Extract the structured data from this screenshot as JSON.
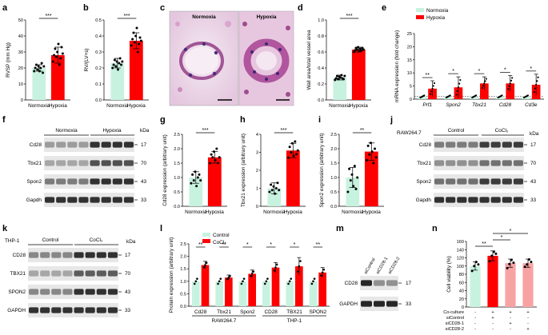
{
  "colors": {
    "control": "#c8f2e0",
    "treat": "#ff0000",
    "treat_light": "#f8a3a3",
    "control_dot_fill": "#c8f2e0"
  },
  "panels": {
    "a": {
      "label": "a",
      "ylabel": "RVSP (mm Hg)",
      "yticks": [
        "0",
        "10",
        "20",
        "30",
        "40",
        "50"
      ],
      "ymax": 50,
      "groups": [
        "Normoxia",
        "Hypoxia"
      ],
      "means": [
        20,
        28
      ],
      "errors": [
        2,
        5
      ],
      "points": [
        [
          18,
          20,
          22,
          19,
          21,
          18,
          20,
          23,
          17,
          21
        ],
        [
          24,
          28,
          32,
          27,
          30,
          35,
          22,
          26,
          33,
          29
        ]
      ],
      "sig": "***"
    },
    "b": {
      "label": "b",
      "ylabel": "RV/(LV+s)",
      "yticks": [
        "0.0",
        "0.1",
        "0.2",
        "0.3",
        "0.4",
        "0.5"
      ],
      "ymax": 0.5,
      "groups": [
        "Normoxia",
        "Hypoxia"
      ],
      "means": [
        0.23,
        0.37
      ],
      "errors": [
        0.03,
        0.05
      ],
      "points": [
        [
          0.2,
          0.22,
          0.25,
          0.21,
          0.24,
          0.19,
          0.23,
          0.26,
          0.22,
          0.24
        ],
        [
          0.34,
          0.38,
          0.42,
          0.36,
          0.4,
          0.45,
          0.3,
          0.35,
          0.39,
          0.37
        ]
      ],
      "sig": "***"
    },
    "c": {
      "label": "c",
      "titles": [
        "Normoxia",
        "Hypoxia"
      ]
    },
    "d": {
      "label": "d",
      "ylabel": "Wall area/total vessel area",
      "yticks": [
        "0.0",
        "0.2",
        "0.4",
        "0.6",
        "0.8",
        "1.0"
      ],
      "ymax": 1.0,
      "groups": [
        "Normoxia",
        "Hypoxia"
      ],
      "means": [
        0.28,
        0.63
      ],
      "errors": [
        0.03,
        0.03
      ],
      "points": [
        [
          0.25,
          0.27,
          0.3,
          0.26,
          0.29,
          0.28,
          0.31,
          0.27,
          0.26,
          0.3
        ],
        [
          0.6,
          0.62,
          0.65,
          0.63,
          0.66,
          0.61,
          0.64,
          0.62,
          0.65,
          0.63
        ]
      ],
      "sig": "***"
    },
    "e": {
      "label": "e",
      "ylabel": "mRNA expression (fold change)",
      "yticks": [
        "0",
        "5",
        "10",
        "15",
        "20",
        "25"
      ],
      "ymax": 25,
      "legend": [
        "Normoxia",
        "Hypoxia"
      ],
      "genes": [
        "Prf1",
        "Spon2",
        "Tbx21",
        "Cd28",
        "Cd3e"
      ],
      "ctrl_means": [
        1,
        1,
        1,
        1,
        1
      ],
      "hyp_means": [
        4,
        4.5,
        6,
        6,
        5.5
      ],
      "hyp_err": [
        3,
        4,
        2.5,
        3,
        4
      ],
      "sigs": [
        "**",
        "*",
        "*",
        "*",
        "*"
      ]
    },
    "f": {
      "label": "f",
      "groups": [
        "Normoxia",
        "Hypoxia"
      ],
      "bands": [
        "Cd28",
        "Tbx21",
        "Spon2",
        "Gapdh"
      ],
      "kda_title": "kDa",
      "kda": [
        "17",
        "70",
        "43",
        "33"
      ]
    },
    "g": {
      "label": "g",
      "ylabel": "Cd28 expression (arbitrary unit)",
      "yticks": [
        "0.0",
        "0.5",
        "1.0",
        "1.5",
        "2.0",
        "2.5"
      ],
      "ymax": 2.5,
      "groups": [
        "Normoxia",
        "Hypoxia"
      ],
      "means": [
        1,
        1.7
      ],
      "errors": [
        0.2,
        0.2
      ],
      "points": [
        [
          0.8,
          1.1,
          0.9,
          1.2,
          0.7,
          1.0,
          1.1,
          0.9
        ],
        [
          1.5,
          1.8,
          1.7,
          1.9,
          1.6,
          2.0,
          1.5,
          1.7
        ]
      ],
      "sig": "***"
    },
    "h": {
      "label": "h",
      "ylabel": "Tbx21 expression (arbitrary unit)",
      "yticks": [
        "0",
        "1",
        "2",
        "3",
        "4"
      ],
      "ymax": 4,
      "groups": [
        "Normoxia",
        "Hypoxia"
      ],
      "means": [
        1,
        3.1
      ],
      "errors": [
        0.3,
        0.4
      ],
      "points": [
        [
          0.8,
          1.2,
          0.9,
          1.1,
          0.7,
          1.0,
          1.3,
          0.9
        ],
        [
          2.7,
          3.3,
          3.0,
          3.5,
          2.8,
          3.6,
          2.9,
          3.1
        ]
      ],
      "sig": "***"
    },
    "i": {
      "label": "i",
      "ylabel": "Spon2 expression (arbitrary unit)",
      "yticks": [
        "0.0",
        "0.5",
        "1.0",
        "1.5",
        "2.0",
        "2.5"
      ],
      "ymax": 2.5,
      "groups": [
        "Normoxia",
        "Hypoxia"
      ],
      "means": [
        1,
        1.9
      ],
      "errors": [
        0.35,
        0.3
      ],
      "points": [
        [
          0.5,
          1.3,
          0.9,
          1.1,
          0.7,
          1.4,
          0.6,
          1.0
        ],
        [
          1.6,
          2.1,
          1.8,
          2.2,
          1.9,
          1.5,
          2.0,
          1.7
        ]
      ],
      "sig": "**"
    },
    "j": {
      "label": "j",
      "cell": "RAW264.7",
      "groups": [
        "Control",
        "CoCl₂"
      ],
      "bands": [
        "Cd28",
        "Tbx21",
        "Spon2",
        "Gapdh"
      ],
      "kda_title": "kDa",
      "kda": [
        "17",
        "70",
        "43",
        "33"
      ]
    },
    "k": {
      "label": "k",
      "cell": "THP-1",
      "groups": [
        "Control",
        "CoCl₂"
      ],
      "bands": [
        "CD28",
        "TBX21",
        "SPON2",
        "GAPDH"
      ],
      "kda_title": "kDa",
      "kda": [
        "17",
        "70",
        "43",
        "33"
      ]
    },
    "l": {
      "label": "l",
      "ylabel": "Protein expression (arbitrary unit)",
      "yticks": [
        "0.0",
        "0.5",
        "1.0",
        "1.5",
        "2.0",
        "2.5"
      ],
      "ymax": 2.5,
      "legend": [
        "Control",
        "CoCl₂"
      ],
      "cats": [
        "Cd28",
        "Tbx21",
        "Spon2",
        "CD28",
        "TBX21",
        "SPON2"
      ],
      "groups": [
        "RAW264.7",
        "THP-1"
      ],
      "ctrl_means": [
        1,
        1,
        1,
        1,
        1,
        1
      ],
      "treat_means": [
        1.65,
        1.15,
        1.3,
        1.55,
        1.6,
        1.35
      ],
      "treat_err": [
        0.15,
        0.1,
        0.15,
        0.2,
        0.35,
        0.2
      ],
      "sigs": [
        "**",
        "**",
        "*",
        "*",
        "*",
        "**"
      ]
    },
    "m": {
      "label": "m",
      "lanes": [
        "siControl",
        "siCD28-1",
        "siCD28-2"
      ],
      "bands": [
        "CD28",
        "GAPDH"
      ],
      "kda": [
        "17",
        "33"
      ]
    },
    "n": {
      "label": "n",
      "ylabel": "Cell viability (%)",
      "yticks": [
        "0",
        "20",
        "40",
        "60",
        "80",
        "100",
        "120",
        "140",
        "160"
      ],
      "ymax": 160,
      "means": [
        100,
        125,
        107,
        107
      ],
      "errors": [
        10,
        12,
        10,
        10
      ],
      "points": [
        [
          88,
          100,
          110,
          104
        ],
        [
          112,
          125,
          135,
          130
        ],
        [
          95,
          105,
          115,
          108
        ],
        [
          98,
          104,
          116,
          110
        ]
      ],
      "rows": [
        "Co-culture",
        "siControl",
        "siCD28-1",
        "siCD28-2"
      ],
      "signs": [
        [
          "-",
          "+",
          "+",
          "+"
        ],
        [
          "-",
          "+",
          "-",
          "-"
        ],
        [
          "-",
          "-",
          "+",
          "-"
        ],
        [
          "-",
          "-",
          "-",
          "+"
        ]
      ],
      "sigs": [
        "**",
        "*",
        "*"
      ]
    }
  }
}
